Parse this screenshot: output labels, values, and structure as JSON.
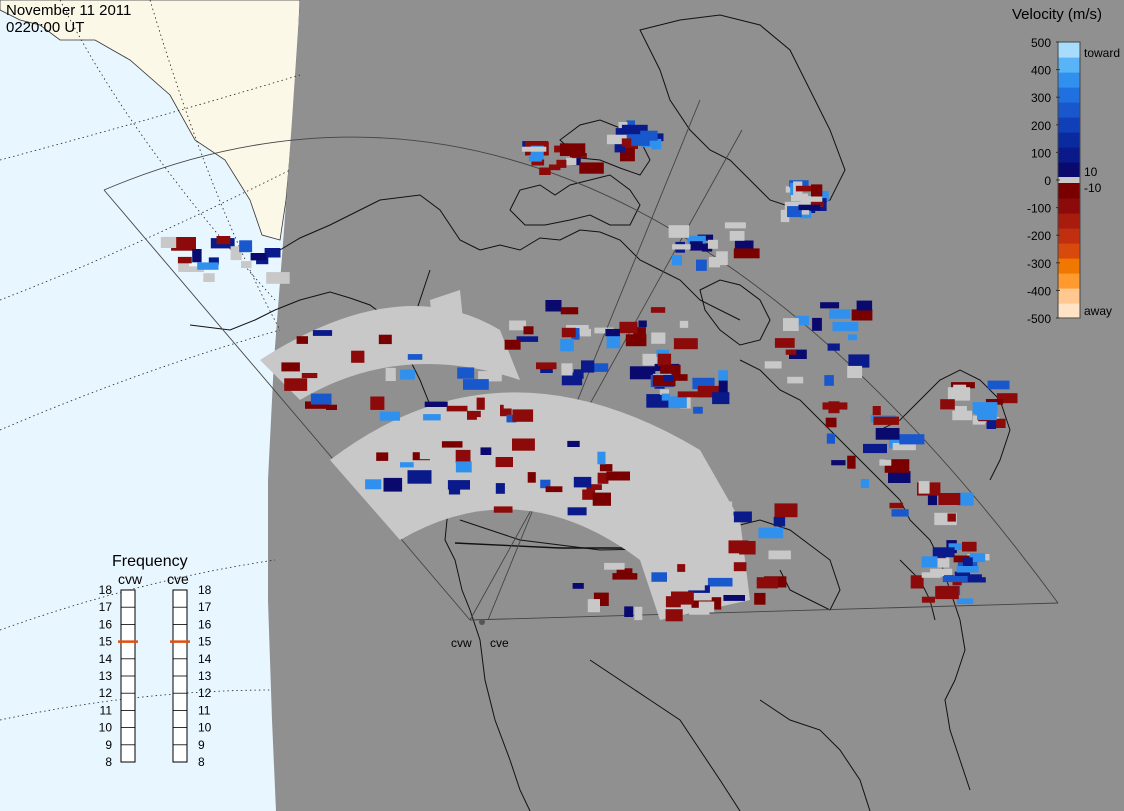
{
  "header": {
    "date": "November 11 2011",
    "time": "0220:00 UT"
  },
  "velocity_scale": {
    "title": "Velocity (m/s)",
    "ticks": [
      "500",
      "400",
      "300",
      "200",
      "100",
      "0",
      "-100",
      "-200",
      "-300",
      "-400",
      "-500"
    ],
    "small_ticks": [
      "10",
      "-10"
    ],
    "toward_label": "toward",
    "away_label": "away",
    "colors": [
      "#ffe3c4",
      "#ffc890",
      "#ff9a2e",
      "#f07800",
      "#d84a0c",
      "#c03010",
      "#a81c0e",
      "#8c0a0a",
      "#7a0000",
      "#0a0a6e",
      "#0a1a8a",
      "#0a2aa0",
      "#1040b8",
      "#1858cc",
      "#2070e0",
      "#3090ee",
      "#58b4f6",
      "#a8dcfc"
    ]
  },
  "frequency": {
    "title": "Frequency",
    "radars": [
      "cvw",
      "cve"
    ],
    "ticks": [
      "18",
      "17",
      "16",
      "15",
      "14",
      "13",
      "12",
      "11",
      "10",
      "9",
      "8"
    ],
    "selected": [
      15,
      15
    ]
  },
  "radar_labels": [
    "cvw",
    "cve"
  ],
  "colors": {
    "ocean": "#e8f6ff",
    "land_outside": "#fbf8e8",
    "night": "#909090",
    "ground_scatter": "#c8c8c8",
    "indicator": "#e05010"
  }
}
